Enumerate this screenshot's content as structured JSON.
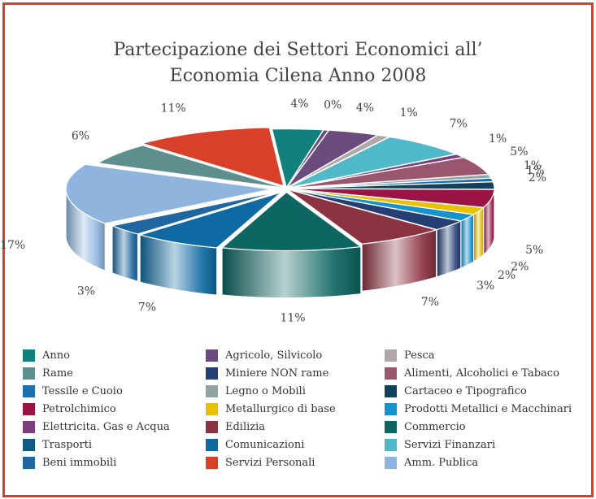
{
  "chart_data": {
    "type": "pie",
    "title_lines": [
      "Partecipazione dei Settori Economici all’",
      "Economia Cilena Anno 2008"
    ],
    "slices": [
      {
        "label": "Anno",
        "value": 4,
        "display": "4%",
        "color": "#14807b"
      },
      {
        "label": "Agricolo, Silvicolo",
        "value": 0.4,
        "display": "0%",
        "color": "#6b4a7d"
      },
      {
        "label": "Agricolo, Silvicolo",
        "value": 4,
        "display": "4%",
        "color": "#6b4a7d"
      },
      {
        "label": "Pesca",
        "value": 1,
        "display": "1%",
        "color": "#b0a8a8"
      },
      {
        "label": "Servizi Finanzari",
        "value": 7,
        "display": "7%",
        "color": "#4fb9c8"
      },
      {
        "label": "Elettricita. Gas e Acqua",
        "value": 1,
        "display": "1%",
        "color": "#7b3f7c"
      },
      {
        "label": "Alimenti, Alcoholici e Tabaco",
        "value": 5,
        "display": "5%",
        "color": "#9b566f"
      },
      {
        "label": "Legno o Mobili",
        "value": 1,
        "display": "1%",
        "color": "#90a4a2"
      },
      {
        "label": "Tessile e Cuoio",
        "value": 1,
        "display": "1%",
        "color": "#1f6fae"
      },
      {
        "label": "Cartaceo e Tipografico",
        "value": 2,
        "display": "2%",
        "color": "#123f5c"
      },
      {
        "label": "Petrolchimico",
        "value": 5,
        "display": "5%",
        "color": "#9a1445"
      },
      {
        "label": "Metallurgico di base",
        "value": 2,
        "display": "2%",
        "color": "#e8c100"
      },
      {
        "label": "Prodotti Metallici e Macchinari",
        "value": 2,
        "display": "2%",
        "color": "#1693cf"
      },
      {
        "label": "Miniere NON rame",
        "value": 3,
        "display": "3%",
        "color": "#253e73"
      },
      {
        "label": "Edilizia",
        "value": 7,
        "display": "7%",
        "color": "#8c3342"
      },
      {
        "label": "Commercio",
        "value": 11,
        "display": "11%",
        "color": "#0d6662"
      },
      {
        "label": "Comunicazioni",
        "value": 7,
        "display": "7%",
        "color": "#0f6aa3"
      },
      {
        "label": "Beni immobili",
        "value": 3,
        "display": "3%",
        "color": "#1f67a0"
      },
      {
        "label": "Amm. Publica",
        "value": 17,
        "display": "17%",
        "color": "#8fb5df"
      },
      {
        "label": "Rame",
        "value": 6,
        "display": "6%",
        "color": "#5e8e8e"
      },
      {
        "label": "Servizi Personali",
        "value": 11,
        "display": "11%",
        "color": "#d9402a"
      }
    ],
    "legend": [
      {
        "label": "Anno",
        "color": "#14807b"
      },
      {
        "label": "Agricolo, Silvicolo",
        "color": "#6b4a7d"
      },
      {
        "label": "Pesca",
        "color": "#b0a8a8"
      },
      {
        "label": "Rame",
        "color": "#5e8e8e"
      },
      {
        "label": "Miniere NON rame",
        "color": "#253e73"
      },
      {
        "label": "Alimenti, Alcoholici e Tabaco",
        "color": "#9b566f"
      },
      {
        "label": "Tessile e Cuoio",
        "color": "#1f6fae"
      },
      {
        "label": "Legno o Mobili",
        "color": "#90a4a2"
      },
      {
        "label": "Cartaceo e Tipografico",
        "color": "#123f5c"
      },
      {
        "label": "Petrolchimico",
        "color": "#9a1445"
      },
      {
        "label": "Metallurgico di base",
        "color": "#e8c100"
      },
      {
        "label": "Prodotti Metallici e Macchinari",
        "color": "#1693cf"
      },
      {
        "label": "Elettricita. Gas e Acqua",
        "color": "#7b3f7c"
      },
      {
        "label": "Edilizia",
        "color": "#8c3342"
      },
      {
        "label": "Commercio",
        "color": "#0d6662"
      },
      {
        "label": "Trasporti",
        "color": "#135a82"
      },
      {
        "label": "Comunicazioni",
        "color": "#0f6aa3"
      },
      {
        "label": "Servizi Finanzari",
        "color": "#4fb9c8"
      },
      {
        "label": "Beni immobili",
        "color": "#1f67a0"
      },
      {
        "label": "Servizi Personali",
        "color": "#d9402a"
      },
      {
        "label": "Amm. Publica",
        "color": "#8fb5df"
      }
    ]
  },
  "frame_color": "#d9402a"
}
